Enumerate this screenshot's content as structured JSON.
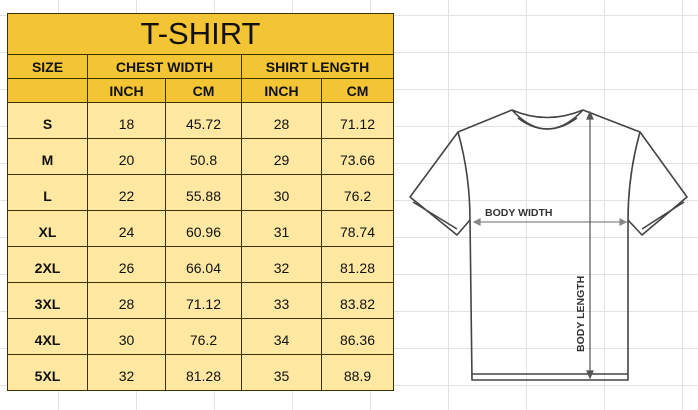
{
  "table": {
    "title": "T-SHIRT",
    "headers": {
      "size": "SIZE",
      "chest": "CHEST WIDTH",
      "length": "SHIRT LENGTH"
    },
    "units": [
      "INCH",
      "CM",
      "INCH",
      "CM"
    ],
    "rows": [
      [
        "S",
        "18",
        "45.72",
        "28",
        "71.12"
      ],
      [
        "M",
        "20",
        "50.8",
        "29",
        "73.66"
      ],
      [
        "L",
        "22",
        "55.88",
        "30",
        "76.2"
      ],
      [
        "XL",
        "24",
        "60.96",
        "31",
        "78.74"
      ],
      [
        "2XL",
        "26",
        "66.04",
        "32",
        "81.28"
      ],
      [
        "3XL",
        "28",
        "71.12",
        "33",
        "83.82"
      ],
      [
        "4XL",
        "30",
        "76.2",
        "34",
        "86.36"
      ],
      [
        "5XL",
        "32",
        "81.28",
        "35",
        "88.9"
      ]
    ]
  },
  "diagram": {
    "width_label": "BODY WIDTH",
    "length_label": "BODY LENGTH"
  },
  "colors": {
    "header": "#f3c434",
    "cells": "#fee8a2"
  }
}
